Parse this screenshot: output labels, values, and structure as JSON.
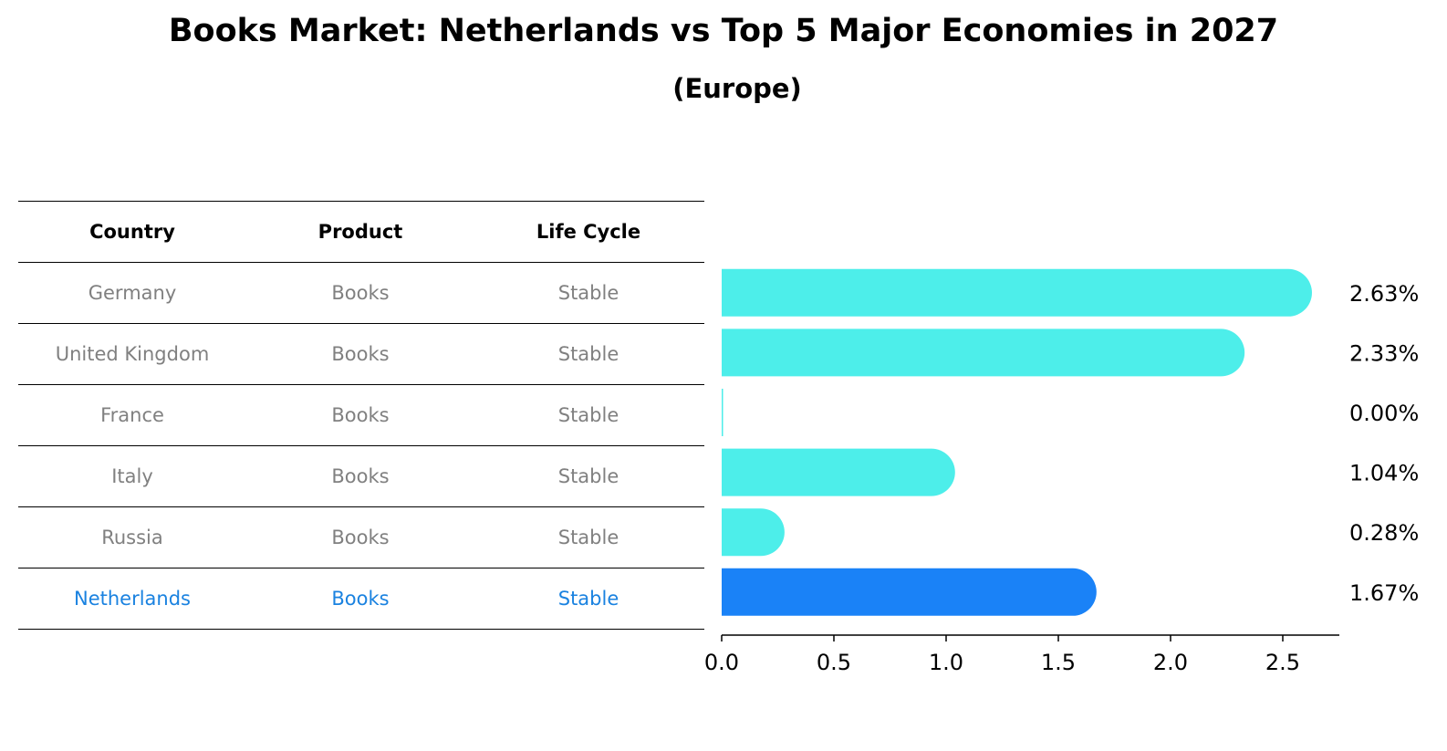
{
  "title": "Books Market: Netherlands vs Top 5 Major Economies in 2027",
  "subtitle": "(Europe)",
  "table": {
    "headers": [
      "Country",
      "Product",
      "Life Cycle"
    ],
    "rows": [
      {
        "country": "Germany",
        "product": "Books",
        "lifecycle": "Stable"
      },
      {
        "country": "United Kingdom",
        "product": "Books",
        "lifecycle": "Stable"
      },
      {
        "country": "France",
        "product": "Books",
        "lifecycle": "Stable"
      },
      {
        "country": "Italy",
        "product": "Books",
        "lifecycle": "Stable"
      },
      {
        "country": "Russia",
        "product": "Books",
        "lifecycle": "Stable"
      },
      {
        "country": "Netherlands",
        "product": "Books",
        "lifecycle": "Stable"
      }
    ]
  },
  "chart_data": {
    "type": "bar",
    "orientation": "horizontal",
    "categories": [
      "Germany",
      "United Kingdom",
      "France",
      "Italy",
      "Russia",
      "Netherlands"
    ],
    "values": [
      2.63,
      2.33,
      0.0,
      1.04,
      0.28,
      1.67
    ],
    "value_labels": [
      "2.63%",
      "2.33%",
      "0.00%",
      "1.04%",
      "0.28%",
      "1.67%"
    ],
    "highlight": "Netherlands",
    "xlim": [
      0,
      2.75
    ],
    "xticks": [
      0.0,
      0.5,
      1.0,
      1.5,
      2.0,
      2.5
    ],
    "xtick_labels": [
      "0.0",
      "0.5",
      "1.0",
      "1.5",
      "2.0",
      "2.5"
    ],
    "colors": {
      "default": "#4deeea",
      "highlight": "#1a82f7",
      "highlight_text": "#1a82e0"
    }
  }
}
